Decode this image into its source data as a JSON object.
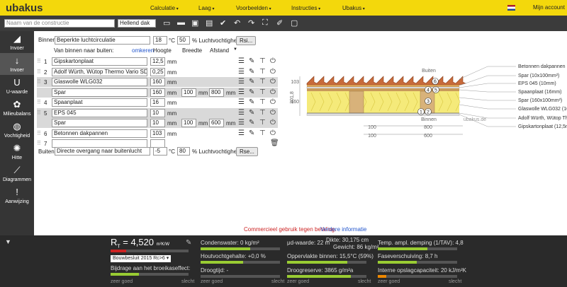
{
  "header": {
    "logo": "ubakus",
    "menu": [
      "Calculatie",
      "Laag",
      "Voorbeelden",
      "Instructies",
      "Ubakus"
    ],
    "account": "Mijn account"
  },
  "toolbar": {
    "name_placeholder": "Naam van de constructie",
    "construction_type": "Hellend dak"
  },
  "sidebar": [
    "Invoer",
    "Invoer",
    "U-waarde",
    "Milieubalans",
    "Vochtigheid",
    "Hitte",
    "Diagrammen",
    "Aanwijzing"
  ],
  "inside": {
    "label": "Binnen:",
    "climate": "Beperkte luchtcirculatie",
    "temperature": "18",
    "temperature_unit": "°C",
    "humidity": "50",
    "humidity_unit": "% Luchtvochtigheid",
    "button": "Rsi..."
  },
  "columns": {
    "order": "Van binnen naar buiten:",
    "reverse": "omkeren",
    "height": "Hoogte",
    "width": "Breedte",
    "spacing": "Afstand"
  },
  "unit": "mm",
  "layers": [
    {
      "number": "1",
      "material": "Gipskartonplaat",
      "height": "12,5"
    },
    {
      "number": "2",
      "material": "Adolf Würth, Wütop Thermo Vario SD",
      "height": "0,25"
    },
    {
      "number": "3",
      "material": "Glaswolle WLG032",
      "height": "160"
    },
    {
      "material": "Spar",
      "height": "160",
      "width": "100",
      "spacing": "800"
    },
    {
      "number": "4",
      "material": "Spaanplaat",
      "height": "16"
    },
    {
      "number": "5",
      "material": "EPS 045",
      "height": "10"
    },
    {
      "material": "Spar",
      "height": "10",
      "width": "100",
      "spacing": "600"
    },
    {
      "number": "6",
      "material": "Betonnen dakpannen",
      "height": "103"
    },
    {
      "number": "7"
    }
  ],
  "outside": {
    "label": "Buiten:",
    "climate": "Directe overgang naar buitenlucht",
    "temperature": "-5",
    "temperature_unit": "°C",
    "humidity": "80",
    "humidity_unit": "% Luchtvochtigheid",
    "button": "Rse..."
  },
  "diagram": {
    "top": "Buiten",
    "bottom": "Binnen",
    "watermark": "ubakus.de",
    "dim_top": "103",
    "dim_mid": "160",
    "dim_total": "301,8",
    "dim_a1": "100",
    "dim_a2": "800",
    "dim_b1": "100",
    "dim_b2": "600",
    "markers": [
      "6",
      "4",
      "5",
      "3",
      "1",
      "2"
    ],
    "legend": [
      "Betonnen dakpannen",
      "Spar (10x100mm²)",
      "EPS 045 (10mm)",
      "Spaanplaat (16mm)",
      "Spar (160x100mm²)",
      "Glaswolle WLG032 (160mm)",
      "Adolf Würth, Wütop Thermo Vario SD (0,25mm)",
      "Gipskartonplaat (12,5mm)"
    ]
  },
  "notice": {
    "text": "Commercieel gebruik tegen betaling.",
    "link": "Verdere informatie"
  },
  "results": {
    "rt_symbol": "R",
    "rt_sub": "T",
    "rt_value": "= 4,520",
    "rt_unit": "m²K/W",
    "standard": "Bouwbesluit 2015 Rc>6",
    "greenhouse": "Bijdrage aan het broeikaseffect:",
    "good": "zeer goed",
    "bad": "slecht",
    "condensation": "Condenswater: 0 kg/m²",
    "wood_moisture": "Houtvochtgehalte: +0,0 %",
    "drying_time": "Droogtijd: -",
    "sd_value": "μd-waarde: 22 m",
    "thickness": "Dikte: 30,175 cm",
    "weight": "Gewicht: 86 kg/m²",
    "surface_inside": "Oppervlakte binnen: 15,5°C (59%)",
    "drying_reserve": "Droogreserve: 3865 g/m²a",
    "damping": "Temp. ampl. demping (1/TAV): 4,8",
    "phase_shift": "Faseverschuiving: 8,7 h",
    "heat_capacity": "Interne opslagcapaciteit: 20 kJ/m²K"
  }
}
